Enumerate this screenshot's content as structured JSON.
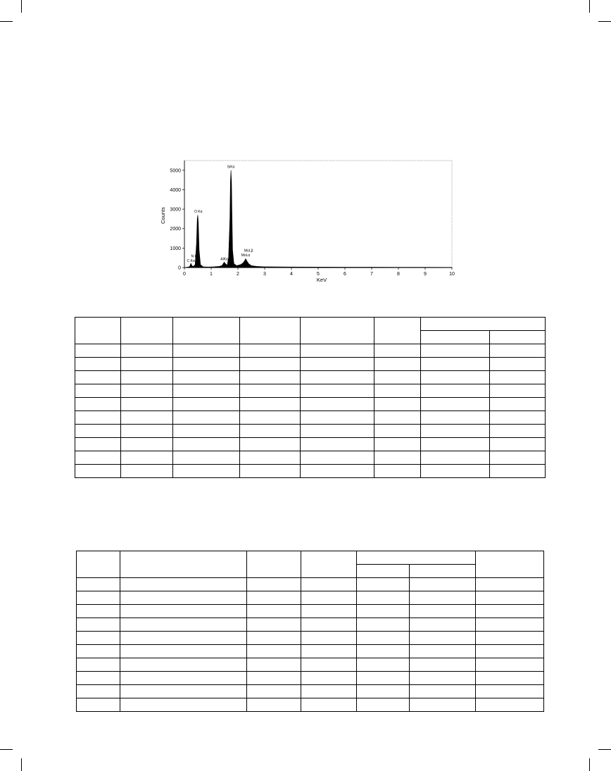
{
  "chart_data": {
    "type": "line",
    "title": "",
    "xlabel": "KeV",
    "ylabel": "Counts",
    "xlim": [
      0,
      10
    ],
    "ylim": [
      0,
      5500
    ],
    "x_ticks": [
      "0",
      "1",
      "2",
      "3",
      "4",
      "5",
      "6",
      "7",
      "8",
      "9",
      "10"
    ],
    "y_ticks": [
      "0",
      "1000",
      "2000",
      "3000",
      "4000",
      "5000"
    ],
    "grid": false,
    "series": [
      {
        "x": [
          0.0,
          0.15,
          0.2,
          0.24,
          0.27,
          0.3,
          0.35,
          0.4,
          0.45,
          0.48,
          0.5,
          0.52,
          0.55,
          0.6,
          0.7,
          0.9,
          1.1,
          1.3,
          1.4,
          1.45,
          1.49,
          1.53,
          1.6,
          1.65,
          1.7,
          1.72,
          1.74,
          1.76,
          1.78,
          1.8,
          1.85,
          1.95,
          2.1,
          2.2,
          2.25,
          2.29,
          2.33,
          2.4,
          2.5,
          2.7,
          3.0,
          4.0,
          5.0,
          6.0,
          7.0,
          8.0,
          9.0,
          10.0
        ],
        "y": [
          0,
          30,
          60,
          220,
          130,
          60,
          80,
          150,
          1200,
          2500,
          2700,
          2300,
          900,
          150,
          40,
          30,
          40,
          60,
          100,
          200,
          280,
          200,
          120,
          500,
          2500,
          4400,
          5000,
          4400,
          2500,
          900,
          200,
          100,
          150,
          250,
          350,
          450,
          350,
          200,
          100,
          60,
          40,
          30,
          25,
          20,
          20,
          15,
          15,
          10
        ]
      }
    ],
    "annotations": [
      {
        "text": "C Kα",
        "x": 0.24,
        "y": 220
      },
      {
        "text": "N K",
        "x": 0.36,
        "y": 450
      },
      {
        "text": "O Kα",
        "x": 0.52,
        "y": 2750
      },
      {
        "text": "AlKα",
        "x": 1.49,
        "y": 300
      },
      {
        "text": "SiKα",
        "x": 1.74,
        "y": 5050
      },
      {
        "text": "MoLα",
        "x": 2.29,
        "y": 500
      },
      {
        "text": "MoLβ",
        "x": 2.4,
        "y": 750
      }
    ]
  },
  "tables": [
    {
      "rows": 12,
      "col_widths": [
        65,
        74,
        95,
        86,
        104,
        66,
        98,
        79
      ],
      "header_span": {
        "col": 6,
        "span": 2
      }
    },
    {
      "rows": 12,
      "col_widths": [
        62,
        180,
        77,
        78,
        75,
        94,
        97
      ],
      "header_span": {
        "col": 4,
        "span": 2
      }
    }
  ]
}
